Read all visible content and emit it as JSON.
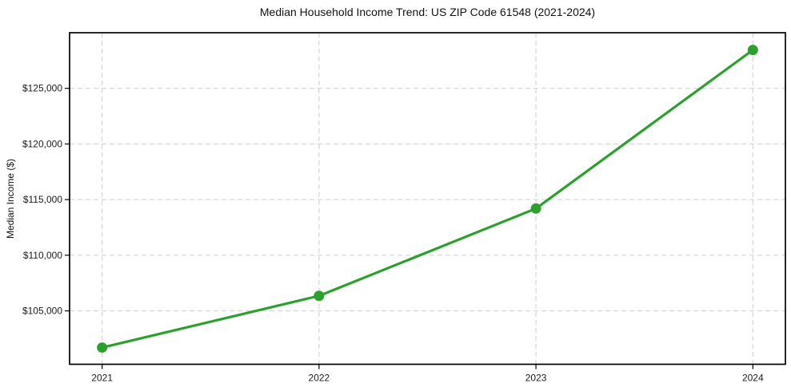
{
  "page": {
    "background_color": "#ffffff"
  },
  "chart_data": {
    "type": "line",
    "title": "Median Household Income Trend: US ZIP Code 61548 (2021-2024)",
    "xlabel": "",
    "ylabel": "Median Income ($)",
    "categories": [
      "2021",
      "2022",
      "2023",
      "2024"
    ],
    "x": [
      2021,
      2022,
      2023,
      2024
    ],
    "values": [
      101700,
      106350,
      114200,
      128450
    ],
    "yticks": [
      105000,
      110000,
      115000,
      120000,
      125000
    ],
    "ytick_labels": [
      "$105,000",
      "$110,000",
      "$115,000",
      "$120,000",
      "$125,000"
    ],
    "ylim": [
      100200,
      130000
    ],
    "xlim": [
      2020.85,
      2024.15
    ],
    "grid": {
      "visible": true,
      "style": "dashed",
      "color": "#cdcdcd"
    },
    "legend": "none",
    "line_color": "#2ca02c",
    "marker_color": "#2ca02c",
    "axis_color": "#000000",
    "tick_label_color": "#1a1a1a"
  }
}
